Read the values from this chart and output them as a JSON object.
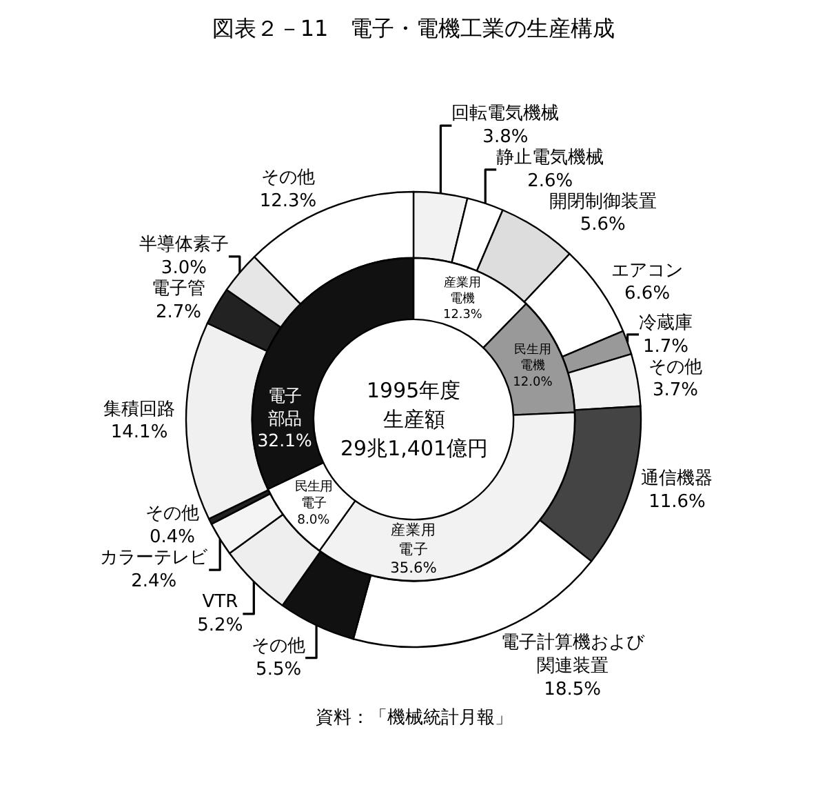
{
  "chart_data": [
    {
      "type": "donut",
      "title": "図表２－11　電子・電機工業の生産構成",
      "annotations": [
        "資料：「機械統計月報」"
      ],
      "categories": [
        "回転電気機械",
        "静止電気機械",
        "開閉制御装置",
        "エアコン",
        "冷蔵庫",
        "その他",
        "通信機器",
        "電子計算機および関連装置",
        "その他",
        "VTR",
        "カラーテレビ",
        "その他",
        "集積回路",
        "電子管",
        "半導体素子",
        "その他"
      ],
      "values": [
        3.8,
        2.6,
        5.6,
        6.6,
        1.7,
        3.7,
        11.6,
        18.5,
        5.5,
        5.2,
        2.4,
        0.4,
        14.1,
        2.7,
        3.0,
        12.3
      ],
      "value_labels": [
        "3.8%",
        "2.6%",
        "5.6%",
        "6.6%",
        "1.7%",
        "3.7%",
        "11.6%",
        "18.5%",
        "5.5%",
        "5.2%",
        "2.4%",
        "0.4%",
        "14.1%",
        "2.7%",
        "3.0%",
        "12.3%"
      ],
      "colors": [
        "#f2f2f2",
        "#ffffff",
        "#dddddd",
        "#ffffff",
        "#999999",
        "#f0f0f0",
        "#444444",
        "#ffffff",
        "#111111",
        "#eeeeee",
        "#f4f4f4",
        "#222222",
        "#f0f0f0",
        "#222222",
        "#e6e6e6",
        "#ffffff"
      ]
    },
    {
      "type": "donut",
      "annotations": [
        "1995年度",
        "生産額",
        "29兆1,401億円"
      ],
      "categories": [
        "産業用電機",
        "民生用電機",
        "産業用電子",
        "民生用電子",
        "電子部品"
      ],
      "values": [
        12.3,
        12.0,
        35.6,
        8.0,
        32.1
      ],
      "value_labels": [
        "12.3%",
        "12.0%",
        "35.6%",
        "8.0%",
        "32.1%"
      ],
      "colors": [
        "#ffffff",
        "#999999",
        "#f2f2f2",
        "#ffffff",
        "#111111"
      ]
    }
  ]
}
